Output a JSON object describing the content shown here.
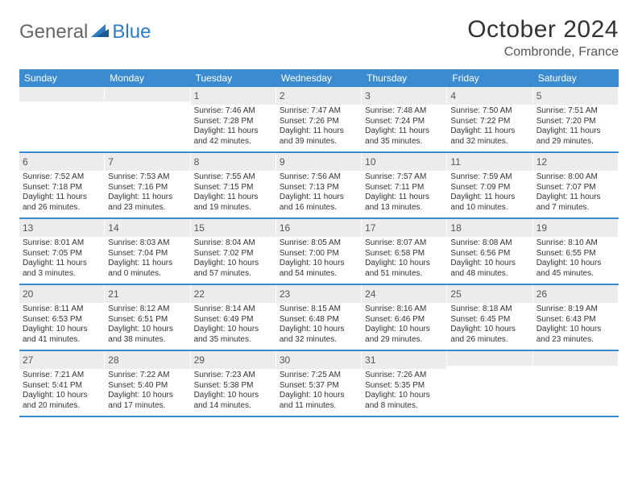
{
  "brand": {
    "part1": "General",
    "part2": "Blue"
  },
  "title": "October 2024",
  "location": "Combronde, France",
  "accent_color": "#3b8bd0",
  "header_bg": "#ececec",
  "dow": [
    "Sunday",
    "Monday",
    "Tuesday",
    "Wednesday",
    "Thursday",
    "Friday",
    "Saturday"
  ],
  "weeks": [
    [
      {
        "n": "",
        "sr": "",
        "ss": "",
        "dl1": "",
        "dl2": ""
      },
      {
        "n": "",
        "sr": "",
        "ss": "",
        "dl1": "",
        "dl2": ""
      },
      {
        "n": "1",
        "sr": "Sunrise: 7:46 AM",
        "ss": "Sunset: 7:28 PM",
        "dl1": "Daylight: 11 hours",
        "dl2": "and 42 minutes."
      },
      {
        "n": "2",
        "sr": "Sunrise: 7:47 AM",
        "ss": "Sunset: 7:26 PM",
        "dl1": "Daylight: 11 hours",
        "dl2": "and 39 minutes."
      },
      {
        "n": "3",
        "sr": "Sunrise: 7:48 AM",
        "ss": "Sunset: 7:24 PM",
        "dl1": "Daylight: 11 hours",
        "dl2": "and 35 minutes."
      },
      {
        "n": "4",
        "sr": "Sunrise: 7:50 AM",
        "ss": "Sunset: 7:22 PM",
        "dl1": "Daylight: 11 hours",
        "dl2": "and 32 minutes."
      },
      {
        "n": "5",
        "sr": "Sunrise: 7:51 AM",
        "ss": "Sunset: 7:20 PM",
        "dl1": "Daylight: 11 hours",
        "dl2": "and 29 minutes."
      }
    ],
    [
      {
        "n": "6",
        "sr": "Sunrise: 7:52 AM",
        "ss": "Sunset: 7:18 PM",
        "dl1": "Daylight: 11 hours",
        "dl2": "and 26 minutes."
      },
      {
        "n": "7",
        "sr": "Sunrise: 7:53 AM",
        "ss": "Sunset: 7:16 PM",
        "dl1": "Daylight: 11 hours",
        "dl2": "and 23 minutes."
      },
      {
        "n": "8",
        "sr": "Sunrise: 7:55 AM",
        "ss": "Sunset: 7:15 PM",
        "dl1": "Daylight: 11 hours",
        "dl2": "and 19 minutes."
      },
      {
        "n": "9",
        "sr": "Sunrise: 7:56 AM",
        "ss": "Sunset: 7:13 PM",
        "dl1": "Daylight: 11 hours",
        "dl2": "and 16 minutes."
      },
      {
        "n": "10",
        "sr": "Sunrise: 7:57 AM",
        "ss": "Sunset: 7:11 PM",
        "dl1": "Daylight: 11 hours",
        "dl2": "and 13 minutes."
      },
      {
        "n": "11",
        "sr": "Sunrise: 7:59 AM",
        "ss": "Sunset: 7:09 PM",
        "dl1": "Daylight: 11 hours",
        "dl2": "and 10 minutes."
      },
      {
        "n": "12",
        "sr": "Sunrise: 8:00 AM",
        "ss": "Sunset: 7:07 PM",
        "dl1": "Daylight: 11 hours",
        "dl2": "and 7 minutes."
      }
    ],
    [
      {
        "n": "13",
        "sr": "Sunrise: 8:01 AM",
        "ss": "Sunset: 7:05 PM",
        "dl1": "Daylight: 11 hours",
        "dl2": "and 3 minutes."
      },
      {
        "n": "14",
        "sr": "Sunrise: 8:03 AM",
        "ss": "Sunset: 7:04 PM",
        "dl1": "Daylight: 11 hours",
        "dl2": "and 0 minutes."
      },
      {
        "n": "15",
        "sr": "Sunrise: 8:04 AM",
        "ss": "Sunset: 7:02 PM",
        "dl1": "Daylight: 10 hours",
        "dl2": "and 57 minutes."
      },
      {
        "n": "16",
        "sr": "Sunrise: 8:05 AM",
        "ss": "Sunset: 7:00 PM",
        "dl1": "Daylight: 10 hours",
        "dl2": "and 54 minutes."
      },
      {
        "n": "17",
        "sr": "Sunrise: 8:07 AM",
        "ss": "Sunset: 6:58 PM",
        "dl1": "Daylight: 10 hours",
        "dl2": "and 51 minutes."
      },
      {
        "n": "18",
        "sr": "Sunrise: 8:08 AM",
        "ss": "Sunset: 6:56 PM",
        "dl1": "Daylight: 10 hours",
        "dl2": "and 48 minutes."
      },
      {
        "n": "19",
        "sr": "Sunrise: 8:10 AM",
        "ss": "Sunset: 6:55 PM",
        "dl1": "Daylight: 10 hours",
        "dl2": "and 45 minutes."
      }
    ],
    [
      {
        "n": "20",
        "sr": "Sunrise: 8:11 AM",
        "ss": "Sunset: 6:53 PM",
        "dl1": "Daylight: 10 hours",
        "dl2": "and 41 minutes."
      },
      {
        "n": "21",
        "sr": "Sunrise: 8:12 AM",
        "ss": "Sunset: 6:51 PM",
        "dl1": "Daylight: 10 hours",
        "dl2": "and 38 minutes."
      },
      {
        "n": "22",
        "sr": "Sunrise: 8:14 AM",
        "ss": "Sunset: 6:49 PM",
        "dl1": "Daylight: 10 hours",
        "dl2": "and 35 minutes."
      },
      {
        "n": "23",
        "sr": "Sunrise: 8:15 AM",
        "ss": "Sunset: 6:48 PM",
        "dl1": "Daylight: 10 hours",
        "dl2": "and 32 minutes."
      },
      {
        "n": "24",
        "sr": "Sunrise: 8:16 AM",
        "ss": "Sunset: 6:46 PM",
        "dl1": "Daylight: 10 hours",
        "dl2": "and 29 minutes."
      },
      {
        "n": "25",
        "sr": "Sunrise: 8:18 AM",
        "ss": "Sunset: 6:45 PM",
        "dl1": "Daylight: 10 hours",
        "dl2": "and 26 minutes."
      },
      {
        "n": "26",
        "sr": "Sunrise: 8:19 AM",
        "ss": "Sunset: 6:43 PM",
        "dl1": "Daylight: 10 hours",
        "dl2": "and 23 minutes."
      }
    ],
    [
      {
        "n": "27",
        "sr": "Sunrise: 7:21 AM",
        "ss": "Sunset: 5:41 PM",
        "dl1": "Daylight: 10 hours",
        "dl2": "and 20 minutes."
      },
      {
        "n": "28",
        "sr": "Sunrise: 7:22 AM",
        "ss": "Sunset: 5:40 PM",
        "dl1": "Daylight: 10 hours",
        "dl2": "and 17 minutes."
      },
      {
        "n": "29",
        "sr": "Sunrise: 7:23 AM",
        "ss": "Sunset: 5:38 PM",
        "dl1": "Daylight: 10 hours",
        "dl2": "and 14 minutes."
      },
      {
        "n": "30",
        "sr": "Sunrise: 7:25 AM",
        "ss": "Sunset: 5:37 PM",
        "dl1": "Daylight: 10 hours",
        "dl2": "and 11 minutes."
      },
      {
        "n": "31",
        "sr": "Sunrise: 7:26 AM",
        "ss": "Sunset: 5:35 PM",
        "dl1": "Daylight: 10 hours",
        "dl2": "and 8 minutes."
      },
      {
        "n": "",
        "sr": "",
        "ss": "",
        "dl1": "",
        "dl2": ""
      },
      {
        "n": "",
        "sr": "",
        "ss": "",
        "dl1": "",
        "dl2": ""
      }
    ]
  ]
}
